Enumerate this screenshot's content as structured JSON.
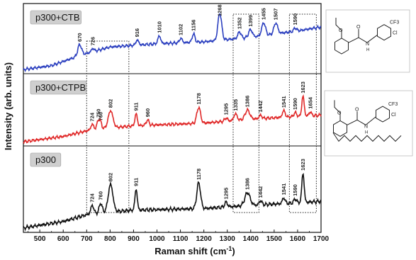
{
  "chart_data": {
    "type": "line",
    "xlabel": "Raman shift (cm",
    "xlabel_sup": "-1",
    "xlabel_end": ")",
    "ylabel": "Intensity (arb. units)",
    "xlim": [
      430,
      1700
    ],
    "xticks": [
      "500",
      "600",
      "700",
      "800",
      "900",
      "1000",
      "1100",
      "1200",
      "1300",
      "1400",
      "1500",
      "1600",
      "1700"
    ],
    "series": [
      {
        "name": "p300+CTB",
        "color": "#2b3fbf",
        "baseline": [
          [
            430,
            0.02
          ],
          [
            550,
            0.08
          ],
          [
            680,
            0.25
          ],
          [
            800,
            0.37
          ],
          [
            1000,
            0.42
          ],
          [
            1200,
            0.45
          ],
          [
            1400,
            0.52
          ],
          [
            1600,
            0.62
          ],
          [
            1700,
            0.68
          ]
        ],
        "peaks": [
          {
            "x": 670,
            "h": 0.17,
            "w": 8,
            "label": "670"
          },
          {
            "x": 726,
            "h": 0.05,
            "w": 6,
            "label": "726"
          },
          {
            "x": 916,
            "h": 0.08,
            "w": 6,
            "label": "916"
          },
          {
            "x": 1010,
            "h": 0.12,
            "w": 6,
            "label": "1010"
          },
          {
            "x": 1102,
            "h": 0.07,
            "w": 6,
            "label": "1102"
          },
          {
            "x": 1156,
            "h": 0.13,
            "w": 6,
            "label": "1156"
          },
          {
            "x": 1268,
            "h": 0.42,
            "w": 8,
            "label": "1268"
          },
          {
            "x": 1352,
            "h": 0.1,
            "w": 7,
            "label": "1352"
          },
          {
            "x": 1399,
            "h": 0.12,
            "w": 8,
            "label": "1399"
          },
          {
            "x": 1455,
            "h": 0.2,
            "w": 8,
            "label": "1455"
          },
          {
            "x": 1507,
            "h": 0.17,
            "w": 8,
            "label": "1507"
          },
          {
            "x": 1590,
            "h": 0.05,
            "w": 6,
            "label": "1590"
          }
        ]
      },
      {
        "name": "p300+CTPB",
        "color": "#e02828",
        "baseline": [
          [
            430,
            0.02
          ],
          [
            600,
            0.1
          ],
          [
            720,
            0.2
          ],
          [
            900,
            0.26
          ],
          [
            1200,
            0.3
          ],
          [
            1400,
            0.36
          ],
          [
            1600,
            0.4
          ],
          [
            1700,
            0.42
          ]
        ],
        "peaks": [
          {
            "x": 724,
            "h": 0.08,
            "w": 6,
            "label": "724"
          },
          {
            "x": 750,
            "h": 0.13,
            "w": 6,
            "label": "750"
          },
          {
            "x": 760,
            "h": 0.08,
            "w": 5,
            "label": "760"
          },
          {
            "x": 802,
            "h": 0.26,
            "w": 10,
            "label": "802"
          },
          {
            "x": 911,
            "h": 0.18,
            "w": 5,
            "label": "911"
          },
          {
            "x": 960,
            "h": 0.08,
            "w": 6,
            "label": "960"
          },
          {
            "x": 1178,
            "h": 0.24,
            "w": 8,
            "label": "1178"
          },
          {
            "x": 1295,
            "h": 0.05,
            "w": 6,
            "label": "1295"
          },
          {
            "x": 1335,
            "h": 0.1,
            "w": 7,
            "label": "1335"
          },
          {
            "x": 1386,
            "h": 0.14,
            "w": 10,
            "label": "1386"
          },
          {
            "x": 1442,
            "h": 0.05,
            "w": 6,
            "label": "1442"
          },
          {
            "x": 1541,
            "h": 0.1,
            "w": 6,
            "label": "1541"
          },
          {
            "x": 1590,
            "h": 0.06,
            "w": 6,
            "label": "1590"
          },
          {
            "x": 1623,
            "h": 0.3,
            "w": 5,
            "label": "1623"
          },
          {
            "x": 1654,
            "h": 0.06,
            "w": 5,
            "label": "1654"
          }
        ]
      },
      {
        "name": "p300",
        "color": "#111111",
        "baseline": [
          [
            430,
            0.02
          ],
          [
            600,
            0.1
          ],
          [
            720,
            0.2
          ],
          [
            900,
            0.24
          ],
          [
            1200,
            0.26
          ],
          [
            1400,
            0.3
          ],
          [
            1600,
            0.33
          ],
          [
            1700,
            0.35
          ]
        ],
        "peaks": [
          {
            "x": 724,
            "h": 0.1,
            "w": 6,
            "label": "724"
          },
          {
            "x": 760,
            "h": 0.12,
            "w": 6,
            "label": "760"
          },
          {
            "x": 802,
            "h": 0.34,
            "w": 10,
            "label": "802"
          },
          {
            "x": 911,
            "h": 0.26,
            "w": 5,
            "label": "911"
          },
          {
            "x": 1178,
            "h": 0.32,
            "w": 8,
            "label": "1178"
          },
          {
            "x": 1295,
            "h": 0.06,
            "w": 6,
            "label": "1295"
          },
          {
            "x": 1386,
            "h": 0.16,
            "w": 11,
            "label": "1386"
          },
          {
            "x": 1442,
            "h": 0.05,
            "w": 6,
            "label": "1442"
          },
          {
            "x": 1541,
            "h": 0.07,
            "w": 6,
            "label": "1541"
          },
          {
            "x": 1590,
            "h": 0.05,
            "w": 6,
            "label": "1590"
          },
          {
            "x": 1623,
            "h": 0.36,
            "w": 5,
            "label": "1623"
          }
        ]
      }
    ],
    "highlight_regions": [
      [
        700,
        880
      ],
      [
        1325,
        1435
      ],
      [
        1565,
        1680
      ]
    ],
    "grid": false
  },
  "structures": [
    {
      "name": "CTB structure",
      "ring_label": "CF3",
      "atom_labels": [
        "O",
        "O",
        "N",
        "H",
        "Cl"
      ]
    },
    {
      "name": "CTPB structure",
      "ring_label": "CF3",
      "atom_labels": [
        "O",
        "O",
        "N",
        "H",
        "Cl"
      ]
    }
  ]
}
